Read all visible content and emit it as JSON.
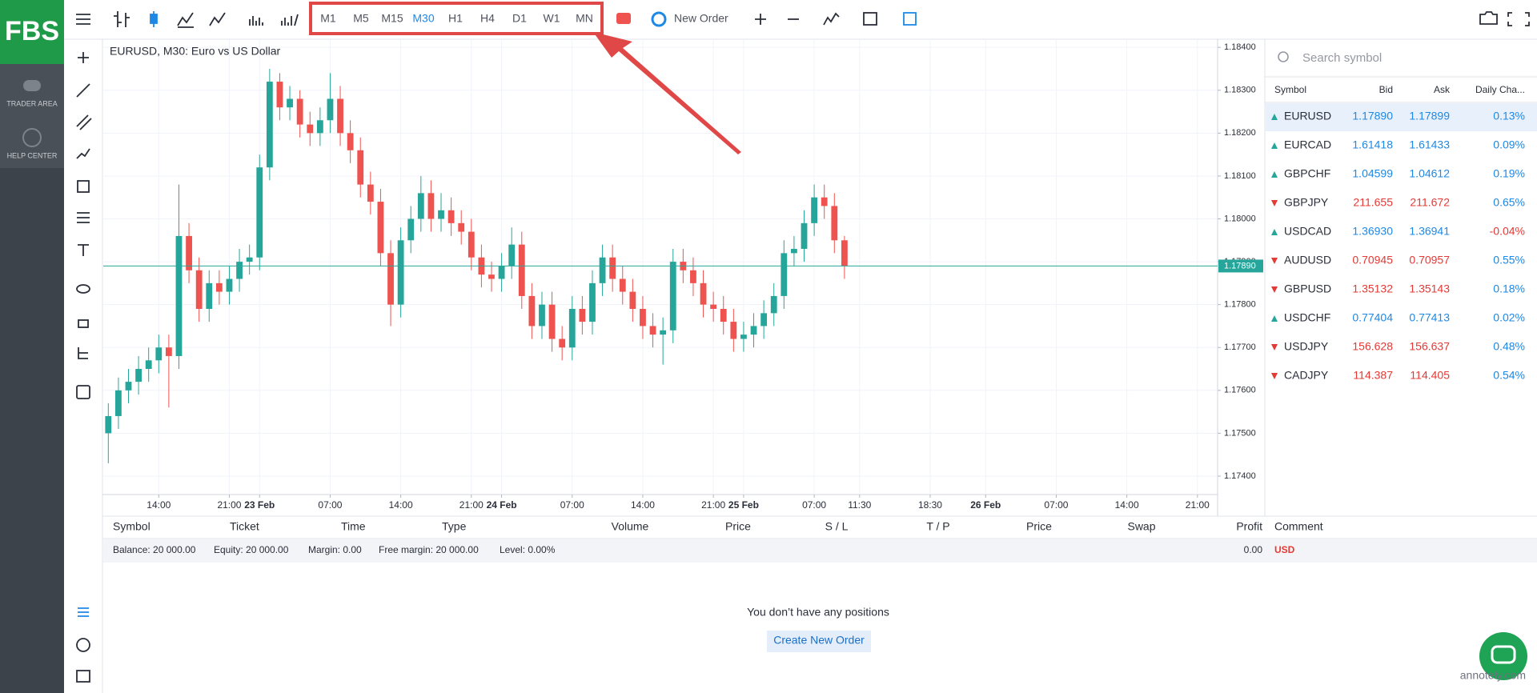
{
  "sidebar": {
    "logo": "FBS",
    "items": [
      "TRADER AREA",
      "HELP CENTER"
    ]
  },
  "toolbar": {
    "timeframes": [
      "M1",
      "M5",
      "M15",
      "M30",
      "H1",
      "H4",
      "D1",
      "W1",
      "MN"
    ],
    "active_timeframe": "M30",
    "new_order": "New Order"
  },
  "chart_data": {
    "type": "candlestick",
    "title": "EURUSD, M30: Euro vs US Dollar",
    "up_color": "#26a69a",
    "down_color": "#ef5350",
    "x": [
      0.5,
      1.5,
      2.5,
      3.5,
      4.5,
      5.5,
      6.5,
      7.5,
      8.5,
      9.5,
      10.5,
      11.5,
      12.5,
      13.5,
      14.5,
      15.5,
      16.5,
      17.5,
      18.5,
      19.5,
      20.5,
      21.5,
      22.5,
      23.5,
      24.5,
      25.5,
      26.5,
      27.5,
      28.5,
      29.5,
      30.5,
      31.5,
      32.5,
      33.5,
      34.5,
      35.5,
      36.5,
      37.5,
      38.5,
      39.5,
      40.5,
      41.5,
      42.5,
      43.5,
      44.5,
      45.5,
      46.5,
      47.5,
      48.5,
      49.5,
      50.5,
      51.5,
      52.5,
      53.5,
      54.5,
      55.5,
      56.5,
      57.5,
      58.5,
      59.5,
      60.5,
      61.5,
      62.5,
      63.5,
      64.5,
      65.5,
      66.5,
      67.5,
      68.5,
      69.5,
      70.5,
      71.5,
      72.5,
      73.5
    ],
    "open": [
      1.175,
      1.1754,
      1.176,
      1.1762,
      1.1765,
      1.1767,
      1.177,
      1.1768,
      1.1796,
      1.1788,
      1.1779,
      1.1785,
      1.1783,
      1.1786,
      1.179,
      1.1791,
      1.1812,
      1.1832,
      1.1826,
      1.1828,
      1.1822,
      1.182,
      1.1823,
      1.1828,
      1.182,
      1.1816,
      1.1808,
      1.1804,
      1.1792,
      1.178,
      1.1795,
      1.18,
      1.1806,
      1.18,
      1.1802,
      1.1799,
      1.1797,
      1.1791,
      1.1787,
      1.1786,
      1.1789,
      1.1794,
      1.1782,
      1.1775,
      1.178,
      1.1772,
      1.177,
      1.1779,
      1.1776,
      1.1785,
      1.1791,
      1.1786,
      1.1783,
      1.1779,
      1.1775,
      1.1773,
      1.1774,
      1.179,
      1.1788,
      1.1785,
      1.178,
      1.1779,
      1.1776,
      1.1772,
      1.1773,
      1.1775,
      1.1778,
      1.1782,
      1.1792,
      1.1793,
      1.1799,
      1.1805,
      1.1803,
      1.1795
    ],
    "high": [
      1.1757,
      1.1763,
      1.1765,
      1.1768,
      1.177,
      1.1773,
      1.1773,
      1.1808,
      1.1799,
      1.1791,
      1.1788,
      1.1788,
      1.1789,
      1.1793,
      1.1794,
      1.1815,
      1.1835,
      1.1834,
      1.1831,
      1.183,
      1.1825,
      1.1826,
      1.1834,
      1.1831,
      1.1823,
      1.1819,
      1.1811,
      1.1807,
      1.1795,
      1.1798,
      1.1803,
      1.181,
      1.1809,
      1.1806,
      1.1805,
      1.1802,
      1.18,
      1.1794,
      1.179,
      1.1792,
      1.1798,
      1.1797,
      1.1785,
      1.1783,
      1.1783,
      1.1775,
      1.1782,
      1.1782,
      1.1788,
      1.1794,
      1.1794,
      1.1789,
      1.1786,
      1.1782,
      1.1778,
      1.1777,
      1.1793,
      1.1793,
      1.1791,
      1.1788,
      1.1783,
      1.1782,
      1.1779,
      1.1776,
      1.1778,
      1.1781,
      1.1785,
      1.1795,
      1.1796,
      1.1802,
      1.1808,
      1.1808,
      1.1806,
      1.1796
    ],
    "low": [
      1.1743,
      1.1751,
      1.1757,
      1.1759,
      1.1762,
      1.1764,
      1.1756,
      1.1765,
      1.1785,
      1.1776,
      1.1776,
      1.178,
      1.178,
      1.1783,
      1.1787,
      1.1788,
      1.1809,
      1.1823,
      1.1823,
      1.1819,
      1.1817,
      1.1817,
      1.182,
      1.1817,
      1.1813,
      1.1805,
      1.1801,
      1.1789,
      1.1775,
      1.1777,
      1.1792,
      1.1797,
      1.1797,
      1.1797,
      1.1796,
      1.1794,
      1.1788,
      1.1784,
      1.1783,
      1.1783,
      1.1786,
      1.1779,
      1.1772,
      1.1772,
      1.1769,
      1.1767,
      1.1767,
      1.1773,
      1.1773,
      1.1782,
      1.1783,
      1.178,
      1.1776,
      1.1772,
      1.177,
      1.1766,
      1.1771,
      1.1785,
      1.1782,
      1.1777,
      1.1776,
      1.1773,
      1.1769,
      1.1769,
      1.177,
      1.1772,
      1.1775,
      1.1779,
      1.1789,
      1.179,
      1.1796,
      1.18,
      1.1792,
      1.1786
    ],
    "close": [
      1.1754,
      1.176,
      1.1762,
      1.1765,
      1.1767,
      1.177,
      1.1768,
      1.1796,
      1.1788,
      1.1779,
      1.1785,
      1.1783,
      1.1786,
      1.179,
      1.1791,
      1.1812,
      1.1832,
      1.1826,
      1.1828,
      1.1822,
      1.182,
      1.1823,
      1.1828,
      1.182,
      1.1816,
      1.1808,
      1.1804,
      1.1792,
      1.178,
      1.1795,
      1.18,
      1.1806,
      1.18,
      1.1802,
      1.1799,
      1.1797,
      1.1791,
      1.1787,
      1.1786,
      1.1789,
      1.1794,
      1.1782,
      1.1775,
      1.178,
      1.1772,
      1.177,
      1.1779,
      1.1776,
      1.1785,
      1.1791,
      1.1786,
      1.1783,
      1.1779,
      1.1775,
      1.1773,
      1.1774,
      1.179,
      1.1788,
      1.1785,
      1.178,
      1.1779,
      1.1776,
      1.1772,
      1.1773,
      1.1775,
      1.1778,
      1.1782,
      1.1792,
      1.1793,
      1.1799,
      1.1805,
      1.1803,
      1.1795,
      1.1789
    ],
    "current_price": {
      "value": 1.1789,
      "label": "1.17890"
    },
    "current_price_color": "#26a69a",
    "xlim": [
      0,
      110.5
    ],
    "ylim": [
      1.17357,
      1.18419
    ],
    "xticks": [
      {
        "value": 5.5,
        "label": "14:00"
      },
      {
        "value": 12.5,
        "label": "21:00"
      },
      {
        "value": 15.5,
        "label": "23 Feb"
      },
      {
        "value": 22.5,
        "label": "07:00"
      },
      {
        "value": 29.5,
        "label": "14:00"
      },
      {
        "value": 36.5,
        "label": "21:00"
      },
      {
        "value": 39.5,
        "label": "24 Feb"
      },
      {
        "value": 46.5,
        "label": "07:00"
      },
      {
        "value": 53.5,
        "label": "14:00"
      },
      {
        "value": 60.5,
        "label": "21:00"
      },
      {
        "value": 63.5,
        "label": "25 Feb"
      },
      {
        "value": 70.5,
        "label": "07:00"
      },
      {
        "value": 75,
        "label": "11:30"
      },
      {
        "value": 82,
        "label": "18:30"
      },
      {
        "value": 87.5,
        "label": "26 Feb"
      },
      {
        "value": 94.5,
        "label": "07:00"
      },
      {
        "value": 101.5,
        "label": "14:00"
      },
      {
        "value": 108.5,
        "label": "21:00"
      }
    ],
    "yticks": [
      {
        "value": 1.174,
        "label": "1.17400"
      },
      {
        "value": 1.175,
        "label": "1.17500"
      },
      {
        "value": 1.176,
        "label": "1.17600"
      },
      {
        "value": 1.177,
        "label": "1.17700"
      },
      {
        "value": 1.178,
        "label": "1.17800"
      },
      {
        "value": 1.179,
        "label": "1.17900"
      },
      {
        "value": 1.18,
        "label": "1.18000"
      },
      {
        "value": 1.181,
        "label": "1.18100"
      },
      {
        "value": 1.182,
        "label": "1.18200"
      },
      {
        "value": 1.183,
        "label": "1.18300"
      },
      {
        "value": 1.184,
        "label": "1.18400"
      }
    ],
    "grid": true
  },
  "watchlist": {
    "search_placeholder": "Search symbol",
    "columns": [
      "Symbol",
      "Bid",
      "Ask",
      "Daily Cha..."
    ],
    "up_arrow_color": "#26a69a",
    "up_text_color": "#1e88e5",
    "down_color": "#e53935",
    "rows": [
      {
        "symbol": "EURUSD",
        "bid": "1.17890",
        "ask": "1.17899",
        "change": "0.13%",
        "direction": "up",
        "change_direction": "up"
      },
      {
        "symbol": "EURCAD",
        "bid": "1.61418",
        "ask": "1.61433",
        "change": "0.09%",
        "direction": "up",
        "change_direction": "up"
      },
      {
        "symbol": "GBPCHF",
        "bid": "1.04599",
        "ask": "1.04612",
        "change": "0.19%",
        "direction": "up",
        "change_direction": "up"
      },
      {
        "symbol": "GBPJPY",
        "bid": "211.655",
        "ask": "211.672",
        "change": "0.65%",
        "direction": "down",
        "change_direction": "up"
      },
      {
        "symbol": "USDCAD",
        "bid": "1.36930",
        "ask": "1.36941",
        "change": "-0.04%",
        "direction": "up",
        "change_direction": "down"
      },
      {
        "symbol": "AUDUSD",
        "bid": "0.70945",
        "ask": "0.70957",
        "change": "0.55%",
        "direction": "down",
        "change_direction": "up"
      },
      {
        "symbol": "GBPUSD",
        "bid": "1.35132",
        "ask": "1.35143",
        "change": "0.18%",
        "direction": "down",
        "change_direction": "up"
      },
      {
        "symbol": "USDCHF",
        "bid": "0.77404",
        "ask": "0.77413",
        "change": "0.02%",
        "direction": "up",
        "change_direction": "up"
      },
      {
        "symbol": "USDJPY",
        "bid": "156.628",
        "ask": "156.637",
        "change": "0.48%",
        "direction": "down",
        "change_direction": "up"
      },
      {
        "symbol": "CADJPY",
        "bid": "114.387",
        "ask": "114.405",
        "change": "0.54%",
        "direction": "down",
        "change_direction": "up"
      }
    ]
  },
  "positions": {
    "columns": [
      "Symbol",
      "Ticket",
      "Time",
      "Type",
      "Volume",
      "Price",
      "S / L",
      "T / P",
      "Price",
      "Swap",
      "Profit",
      "Comment"
    ],
    "balance_items": [
      "Balance: 20 000.00",
      "Equity: 20 000.00",
      "Margin: 0.00",
      "Free margin: 20 000.00",
      "Level: 0.00%"
    ],
    "profit": "0.00",
    "currency": "USD",
    "empty_message": "You don’t have any positions",
    "button": "Create New Order"
  },
  "watermark": "annotely.com"
}
